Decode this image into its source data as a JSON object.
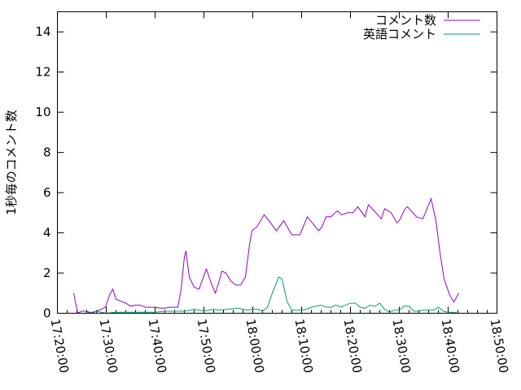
{
  "chart_data": {
    "type": "line",
    "title": "",
    "xlabel": "",
    "ylabel": "1秒毎のコメント数",
    "xlim": [
      "17:20:00",
      "18:50:00"
    ],
    "ylim": [
      0,
      15
    ],
    "x_ticks": [
      "17:20:00",
      "17:30:00",
      "17:40:00",
      "17:50:00",
      "18:00:00",
      "18:10:00",
      "18:20:00",
      "18:30:00",
      "18:40:00",
      "18:50:00"
    ],
    "y_ticks": [
      0,
      2,
      4,
      6,
      8,
      10,
      12,
      14
    ],
    "grid": false,
    "legend": "top-right",
    "series": [
      {
        "name": "コメント数",
        "color": "#9400d3",
        "points": [
          [
            "17:23:20",
            1.0
          ],
          [
            "17:24:10",
            0.0
          ],
          [
            "17:25:00",
            0.1
          ],
          [
            "17:26:00",
            0.1
          ],
          [
            "17:27:00",
            0.0
          ],
          [
            "17:28:00",
            0.1
          ],
          [
            "17:29:00",
            0.2
          ],
          [
            "17:29:50",
            0.3
          ],
          [
            "17:30:40",
            0.9
          ],
          [
            "17:31:20",
            1.2
          ],
          [
            "17:32:00",
            0.7
          ],
          [
            "17:33:00",
            0.6
          ],
          [
            "17:34:00",
            0.5
          ],
          [
            "17:35:00",
            0.35
          ],
          [
            "17:36:00",
            0.4
          ],
          [
            "17:37:00",
            0.4
          ],
          [
            "17:38:00",
            0.3
          ],
          [
            "17:39:00",
            0.3
          ],
          [
            "17:40:00",
            0.3
          ],
          [
            "17:41:00",
            0.25
          ],
          [
            "17:42:00",
            0.25
          ],
          [
            "17:43:00",
            0.3
          ],
          [
            "17:44:00",
            0.3
          ],
          [
            "17:44:40",
            0.3
          ],
          [
            "17:45:20",
            1.2
          ],
          [
            "17:46:00",
            2.8
          ],
          [
            "17:46:20",
            3.1
          ],
          [
            "17:47:00",
            1.8
          ],
          [
            "17:48:00",
            1.3
          ],
          [
            "17:49:00",
            1.2
          ],
          [
            "17:50:30",
            2.2
          ],
          [
            "17:51:30",
            1.5
          ],
          [
            "17:52:20",
            1.0
          ],
          [
            "17:53:00",
            1.5
          ],
          [
            "17:53:40",
            2.1
          ],
          [
            "17:54:30",
            2.0
          ],
          [
            "17:55:30",
            1.6
          ],
          [
            "17:56:30",
            1.4
          ],
          [
            "17:57:30",
            1.4
          ],
          [
            "17:58:30",
            1.8
          ],
          [
            "17:59:20",
            3.4
          ],
          [
            "17:59:50",
            4.1
          ],
          [
            "18:00:50",
            4.3
          ],
          [
            "18:02:20",
            4.9
          ],
          [
            "18:03:20",
            4.6
          ],
          [
            "18:04:50",
            4.1
          ],
          [
            "18:06:20",
            4.6
          ],
          [
            "18:08:00",
            3.9
          ],
          [
            "18:09:40",
            3.9
          ],
          [
            "18:11:10",
            4.8
          ],
          [
            "18:12:10",
            4.5
          ],
          [
            "18:13:30",
            4.1
          ],
          [
            "18:14:10",
            4.3
          ],
          [
            "18:15:00",
            4.8
          ],
          [
            "18:16:00",
            4.8
          ],
          [
            "18:17:20",
            5.1
          ],
          [
            "18:18:10",
            4.9
          ],
          [
            "18:19:30",
            5.0
          ],
          [
            "18:20:30",
            5.0
          ],
          [
            "18:21:30",
            5.3
          ],
          [
            "18:23:00",
            4.8
          ],
          [
            "18:23:40",
            5.4
          ],
          [
            "18:24:50",
            5.1
          ],
          [
            "18:26:20",
            4.7
          ],
          [
            "18:27:00",
            5.2
          ],
          [
            "18:28:20",
            5.0
          ],
          [
            "18:29:30",
            4.5
          ],
          [
            "18:30:00",
            4.6
          ],
          [
            "18:31:10",
            5.2
          ],
          [
            "18:31:40",
            5.3
          ],
          [
            "18:33:30",
            4.8
          ],
          [
            "18:34:50",
            4.7
          ],
          [
            "18:35:30",
            5.1
          ],
          [
            "18:36:30",
            5.7
          ],
          [
            "18:37:30",
            4.6
          ],
          [
            "18:38:20",
            3.0
          ],
          [
            "18:39:10",
            1.7
          ],
          [
            "18:40:20",
            0.9
          ],
          [
            "18:41:10",
            0.55
          ],
          [
            "18:42:10",
            1.0
          ]
        ]
      },
      {
        "name": "英語コメント",
        "color": "#009e73",
        "points": [
          [
            "17:23:20",
            0.0
          ],
          [
            "17:24:10",
            0.0
          ],
          [
            "17:26:00",
            0.0
          ],
          [
            "17:28:00",
            0.1
          ],
          [
            "17:30:00",
            0.0
          ],
          [
            "17:32:00",
            0.05
          ],
          [
            "17:35:00",
            0.05
          ],
          [
            "17:38:00",
            0.05
          ],
          [
            "17:40:00",
            0.05
          ],
          [
            "17:42:00",
            0.1
          ],
          [
            "17:44:00",
            0.1
          ],
          [
            "17:46:00",
            0.1
          ],
          [
            "17:48:00",
            0.2
          ],
          [
            "17:49:00",
            0.15
          ],
          [
            "17:50:00",
            0.1
          ],
          [
            "17:52:00",
            0.2
          ],
          [
            "17:53:00",
            0.15
          ],
          [
            "17:55:00",
            0.2
          ],
          [
            "17:57:00",
            0.25
          ],
          [
            "17:58:00",
            0.2
          ],
          [
            "17:59:00",
            0.15
          ],
          [
            "18:00:00",
            0.2
          ],
          [
            "18:01:00",
            0.2
          ],
          [
            "18:02:00",
            0.1
          ],
          [
            "18:03:00",
            0.3
          ],
          [
            "18:04:00",
            1.0
          ],
          [
            "18:05:00",
            1.6
          ],
          [
            "18:05:20",
            1.8
          ],
          [
            "18:06:00",
            1.7
          ],
          [
            "18:07:00",
            0.6
          ],
          [
            "18:08:00",
            0.15
          ],
          [
            "18:10:00",
            0.15
          ],
          [
            "18:11:00",
            0.2
          ],
          [
            "18:12:00",
            0.3
          ],
          [
            "18:13:00",
            0.35
          ],
          [
            "18:14:00",
            0.4
          ],
          [
            "18:15:00",
            0.3
          ],
          [
            "18:16:00",
            0.3
          ],
          [
            "18:17:00",
            0.4
          ],
          [
            "18:18:00",
            0.3
          ],
          [
            "18:19:00",
            0.4
          ],
          [
            "18:20:00",
            0.5
          ],
          [
            "18:21:00",
            0.5
          ],
          [
            "18:22:00",
            0.3
          ],
          [
            "18:23:00",
            0.25
          ],
          [
            "18:24:00",
            0.4
          ],
          [
            "18:25:00",
            0.35
          ],
          [
            "18:26:00",
            0.5
          ],
          [
            "18:27:00",
            0.2
          ],
          [
            "18:28:00",
            0.05
          ],
          [
            "18:29:00",
            0.15
          ],
          [
            "18:30:00",
            0.15
          ],
          [
            "18:31:00",
            0.35
          ],
          [
            "18:32:00",
            0.35
          ],
          [
            "18:33:00",
            0.1
          ],
          [
            "18:34:00",
            0.1
          ],
          [
            "18:35:00",
            0.15
          ],
          [
            "18:36:00",
            0.15
          ],
          [
            "18:37:00",
            0.15
          ],
          [
            "18:38:00",
            0.3
          ],
          [
            "18:39:00",
            0.1
          ],
          [
            "18:40:00",
            0.05
          ],
          [
            "18:41:00",
            0.05
          ],
          [
            "18:42:00",
            0.0
          ]
        ]
      }
    ]
  }
}
